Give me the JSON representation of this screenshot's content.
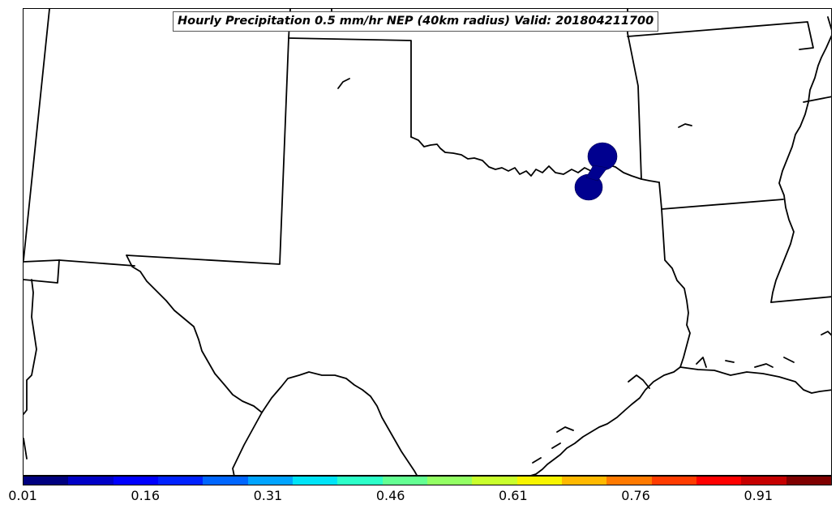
{
  "title": "Hourly Precipitation 0.5 mm/hr NEP (40km radius) Valid: 201804211700",
  "colors": {
    "precip_area": "#00008f",
    "boundary_line": "#000000",
    "land": "#ffffff"
  },
  "colorbar": {
    "min": 0.01,
    "max": 1.0,
    "tick_labels": [
      "0.01",
      "0.16",
      "0.31",
      "0.46",
      "0.61",
      "0.76",
      "0.91"
    ],
    "tick_values": [
      0.01,
      0.16,
      0.31,
      0.46,
      0.61,
      0.76,
      0.91
    ],
    "segment_colors": [
      "#00007f",
      "#0000c6",
      "#0000fe",
      "#0022ff",
      "#0066ff",
      "#00a4ff",
      "#00e4f8",
      "#2dffc9",
      "#64ff93",
      "#93ff64",
      "#c9ff2d",
      "#f8f500",
      "#ffb900",
      "#ff7a00",
      "#ff3c00",
      "#fe0000",
      "#c60000",
      "#7f0000"
    ]
  },
  "precip_area_value_label": "0.01"
}
